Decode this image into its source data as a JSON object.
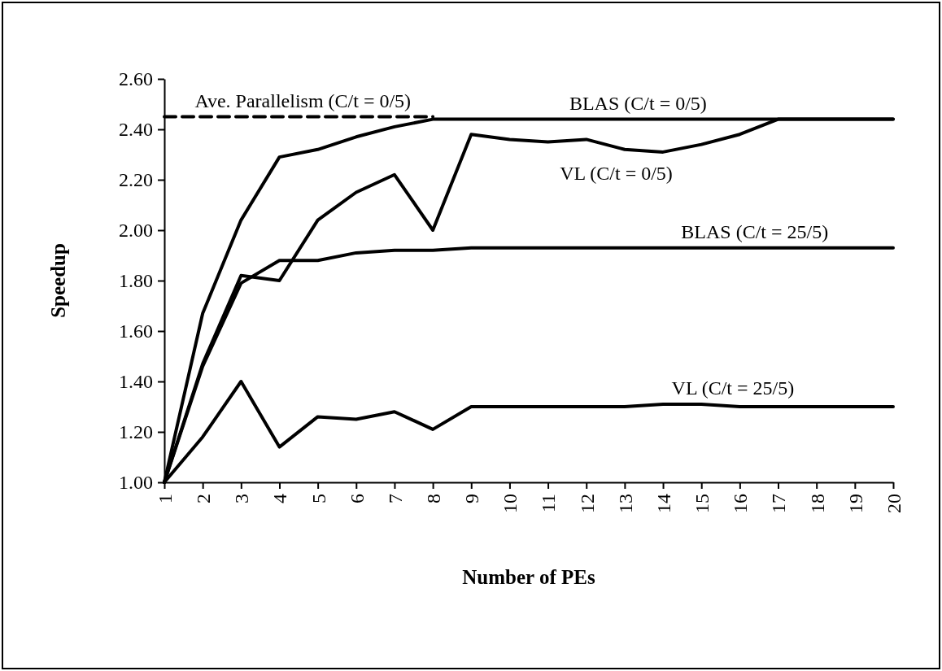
{
  "chart_data": {
    "type": "line",
    "xlabel": "Number of PEs",
    "ylabel": "Speedup",
    "x": [
      1,
      2,
      3,
      4,
      5,
      6,
      7,
      8,
      9,
      10,
      11,
      12,
      13,
      14,
      15,
      16,
      17,
      18,
      19,
      20
    ],
    "xlim": [
      1,
      20
    ],
    "xticks": [
      1,
      2,
      3,
      4,
      5,
      6,
      7,
      8,
      9,
      10,
      11,
      12,
      13,
      14,
      15,
      16,
      17,
      18,
      19,
      20
    ],
    "ylim": [
      1.0,
      2.6
    ],
    "yticks": [
      {
        "value": 1.0,
        "label": "1.00"
      },
      {
        "value": 1.2,
        "label": "1.20"
      },
      {
        "value": 1.4,
        "label": "1.40"
      },
      {
        "value": 1.6,
        "label": "1.60"
      },
      {
        "value": 1.8,
        "label": "1.80"
      },
      {
        "value": 2.0,
        "label": "2.00"
      },
      {
        "value": 2.2,
        "label": "2.20"
      },
      {
        "value": 2.4,
        "label": "2.40"
      },
      {
        "value": 2.6,
        "label": "2.60"
      }
    ],
    "grid": false,
    "marker": "none",
    "series": [
      {
        "name": "Ave. Parallelism (C/t = 0/5)",
        "color": "#000000",
        "x": [
          1,
          8
        ],
        "values": [
          2.45,
          2.45
        ],
        "line_style": "dashed"
      },
      {
        "name": "BLAS (C/t = 0/5)",
        "color": "#000000",
        "values": [
          1.0,
          1.67,
          2.04,
          2.29,
          2.32,
          2.37,
          2.41,
          2.44,
          2.44,
          2.44,
          2.44,
          2.44,
          2.44,
          2.44,
          2.44,
          2.44,
          2.44,
          2.44,
          2.44,
          2.44
        ]
      },
      {
        "name": "VL (C/t = 0/5)",
        "color": "#000000",
        "values": [
          1.0,
          1.47,
          1.82,
          1.8,
          2.04,
          2.15,
          2.22,
          2.0,
          2.38,
          2.36,
          2.35,
          2.36,
          2.32,
          2.31,
          2.34,
          2.38,
          2.44,
          2.44,
          2.44,
          2.44
        ]
      },
      {
        "name": "BLAS (C/t = 25/5)",
        "color": "#000000",
        "values": [
          1.0,
          1.46,
          1.79,
          1.88,
          1.88,
          1.91,
          1.92,
          1.92,
          1.93,
          1.93,
          1.93,
          1.93,
          1.93,
          1.93,
          1.93,
          1.93,
          1.93,
          1.93,
          1.93,
          1.93
        ]
      },
      {
        "name": "VL (C/t = 25/5)",
        "color": "#000000",
        "values": [
          1.0,
          1.18,
          1.4,
          1.14,
          1.26,
          1.25,
          1.28,
          1.21,
          1.3,
          1.3,
          1.3,
          1.3,
          1.3,
          1.31,
          1.31,
          1.3,
          1.3,
          1.3,
          1.3,
          1.3
        ]
      }
    ]
  }
}
